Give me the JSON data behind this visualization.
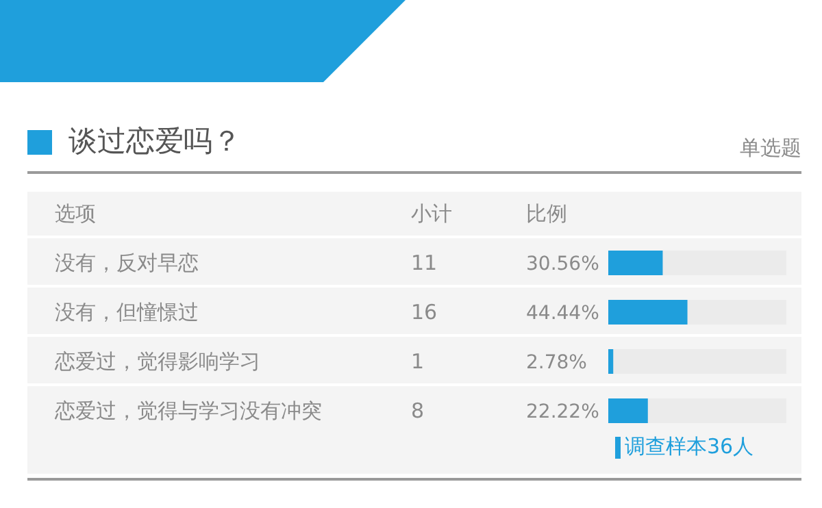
{
  "chart_data": {
    "type": "bar",
    "orientation": "horizontal",
    "title": "谈过恋爱吗？",
    "categories": [
      "没有，反对早恋",
      "没有，但憧憬过",
      "恋爱过，觉得影响学习",
      "恋爱过，觉得与学习没有冲突"
    ],
    "values": [
      30.56,
      44.44,
      2.78,
      22.22
    ],
    "value_labels": [
      "30.56%",
      "44.44%",
      "2.78%",
      "22.22%"
    ],
    "color": "#1f9fdc",
    "xlim": [
      0,
      100
    ],
    "tick_labels": "y",
    "annotations": [
      "选项",
      "小计",
      "比例",
      "单选题",
      "调查样本36人",
      "11",
      "16",
      "1",
      "8"
    ]
  }
}
